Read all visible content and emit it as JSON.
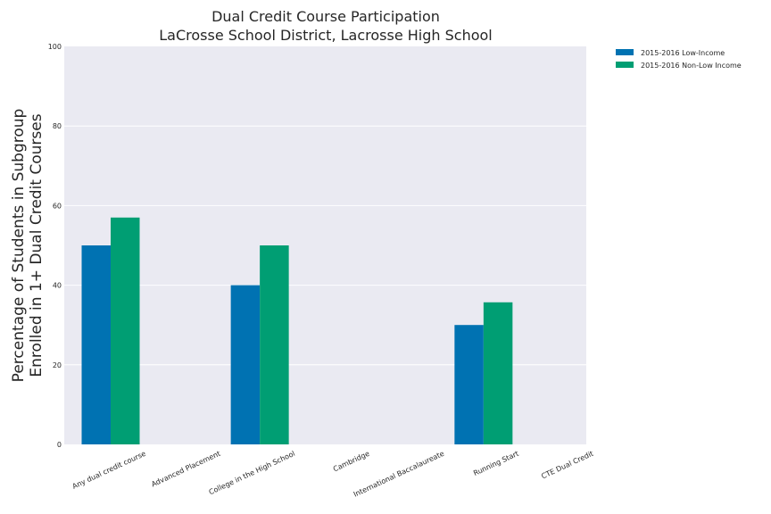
{
  "chart_data": {
    "type": "bar",
    "title": "Dual Credit Course Participation",
    "subtitle": "LaCrosse School District, Lacrosse High School",
    "xlabel": "",
    "ylabel_line1": "Percentage of Students in Subgroup",
    "ylabel_line2": "Enrolled in 1+ Dual Credit Courses",
    "ylim": [
      0,
      100
    ],
    "yticks": [
      "0",
      "20",
      "40",
      "60",
      "80",
      "100"
    ],
    "categories": [
      "Any dual credit course",
      "Advanced Placement",
      "College in the High School",
      "Cambridge",
      "International Baccalaureate",
      "Running Start",
      "CTE Dual Credit"
    ],
    "series": [
      {
        "name": "2015-2016 Low-Income",
        "color": "#0072b2",
        "values": [
          50,
          0,
          40,
          0,
          0,
          30,
          0
        ]
      },
      {
        "name": "2015-2016 Non-Low Income",
        "color": "#009e73",
        "values": [
          57,
          0,
          50,
          0,
          0,
          35.7,
          0
        ]
      }
    ],
    "grid": true,
    "legend": "outside top-right",
    "background": "#eaeaf2"
  }
}
